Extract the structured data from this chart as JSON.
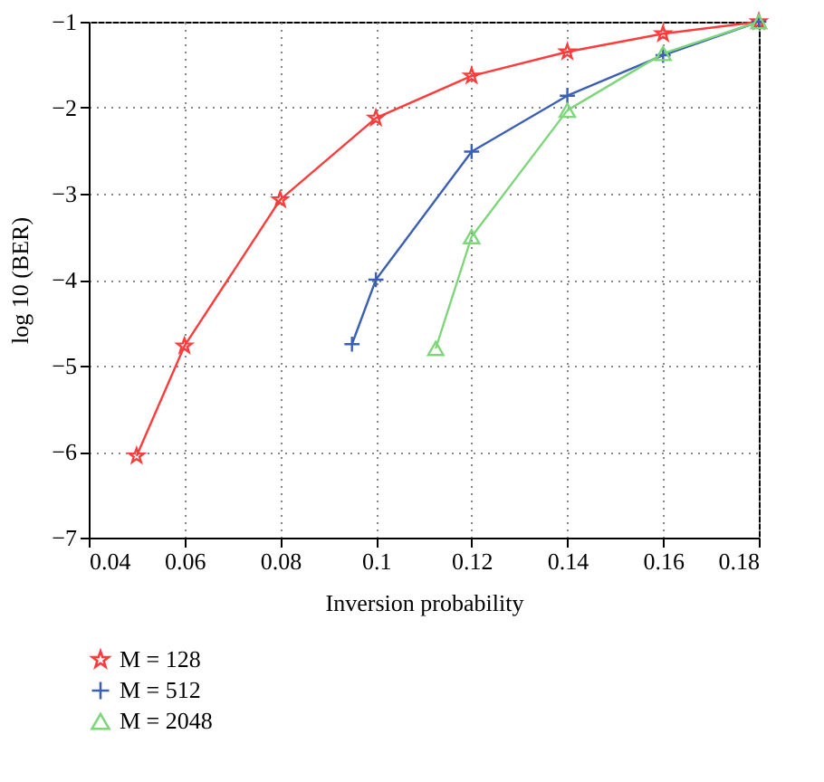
{
  "chart_data": {
    "type": "line",
    "xlabel": "Inversion probability",
    "ylabel": "log 10 (BER)",
    "xlim": [
      0.04,
      0.18
    ],
    "xticks": [
      0.04,
      0.06,
      0.08,
      0.1,
      0.12,
      0.14,
      0.16,
      0.18
    ],
    "ylim": [
      -7,
      -1
    ],
    "yticks": [
      -7,
      -6,
      -5,
      -4,
      -3,
      -2,
      -1
    ],
    "grid": true,
    "legend": "bottom",
    "line_style": "solid",
    "series": [
      {
        "name": "M = 128",
        "color": "#ff3b3b",
        "marker": "star",
        "x": [
          0.05,
          0.06,
          0.08,
          0.1,
          0.12,
          0.14,
          0.16,
          0.18
        ],
        "values": [
          -6.05,
          -4.77,
          -3.07,
          -2.12,
          -1.63,
          -1.35,
          -1.14,
          -1.0
        ]
      },
      {
        "name": "M = 512",
        "color": "#3b5fb5",
        "marker": "cross",
        "x": [
          0.095,
          0.1,
          0.12,
          0.14,
          0.16,
          0.18
        ],
        "values": [
          -4.75,
          -4.0,
          -2.51,
          -1.86,
          -1.39,
          -1.0
        ]
      },
      {
        "name": "M = 2048",
        "color": "#7ed67a",
        "marker": "triangle",
        "x": [
          0.1125,
          0.12,
          0.14,
          0.16,
          0.18
        ],
        "values": [
          -4.8,
          -3.5,
          -2.03,
          -1.37,
          -1.0
        ]
      }
    ]
  }
}
